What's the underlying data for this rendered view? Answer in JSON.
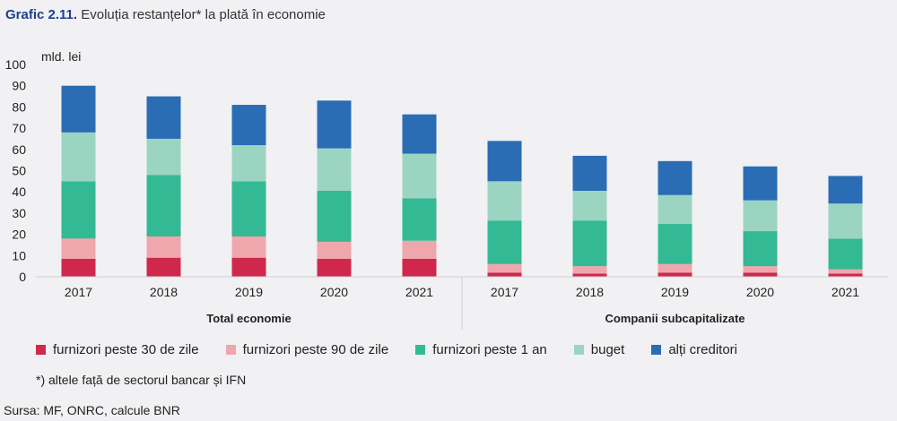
{
  "header": {
    "title_number": "Grafic 2.11.",
    "title_text": "Evoluția restanțelor* la plată în economie"
  },
  "footnote": "*) altele față de sectorul bancar și IFN",
  "source": "Sursa: MF, ONRC, calcule BNR",
  "chart_data": {
    "type": "bar",
    "stacked": true,
    "ylabel": "mld. lei",
    "ylim": [
      0,
      100
    ],
    "yticks": [
      0,
      10,
      20,
      30,
      40,
      50,
      60,
      70,
      80,
      90,
      100
    ],
    "legend_position": "bottom",
    "grid": false,
    "groups": [
      {
        "label": "Total economie",
        "categories": [
          "2017",
          "2018",
          "2019",
          "2020",
          "2021"
        ]
      },
      {
        "label": "Companii subcapitalizate",
        "categories": [
          "2017",
          "2018",
          "2019",
          "2020",
          "2021"
        ]
      }
    ],
    "categories": [
      "2017",
      "2018",
      "2019",
      "2020",
      "2021",
      "2017",
      "2018",
      "2019",
      "2020",
      "2021"
    ],
    "series": [
      {
        "name": "furnizori peste 30 de zile",
        "color": "#d0284d",
        "values": [
          8.5,
          9,
          9,
          8.5,
          8.5,
          2,
          1.5,
          2,
          2,
          1.5
        ]
      },
      {
        "name": "furnizori peste 90 de zile",
        "color": "#f0a6ad",
        "values": [
          9.5,
          10,
          10,
          8,
          8.5,
          4,
          3.5,
          4,
          3,
          2
        ]
      },
      {
        "name": "furnizori peste 1 an",
        "color": "#34b995",
        "values": [
          27,
          29,
          26,
          24,
          20,
          20.5,
          21.5,
          19,
          16.5,
          14.5
        ]
      },
      {
        "name": "buget",
        "color": "#9bd5c2",
        "values": [
          23,
          17,
          17,
          20,
          21,
          18.5,
          14,
          13.5,
          14.5,
          16.5
        ]
      },
      {
        "name": "alți creditori",
        "color": "#2a6db4",
        "values": [
          22,
          20,
          19,
          22.5,
          18.5,
          19,
          16.5,
          16,
          16,
          13
        ]
      }
    ]
  }
}
